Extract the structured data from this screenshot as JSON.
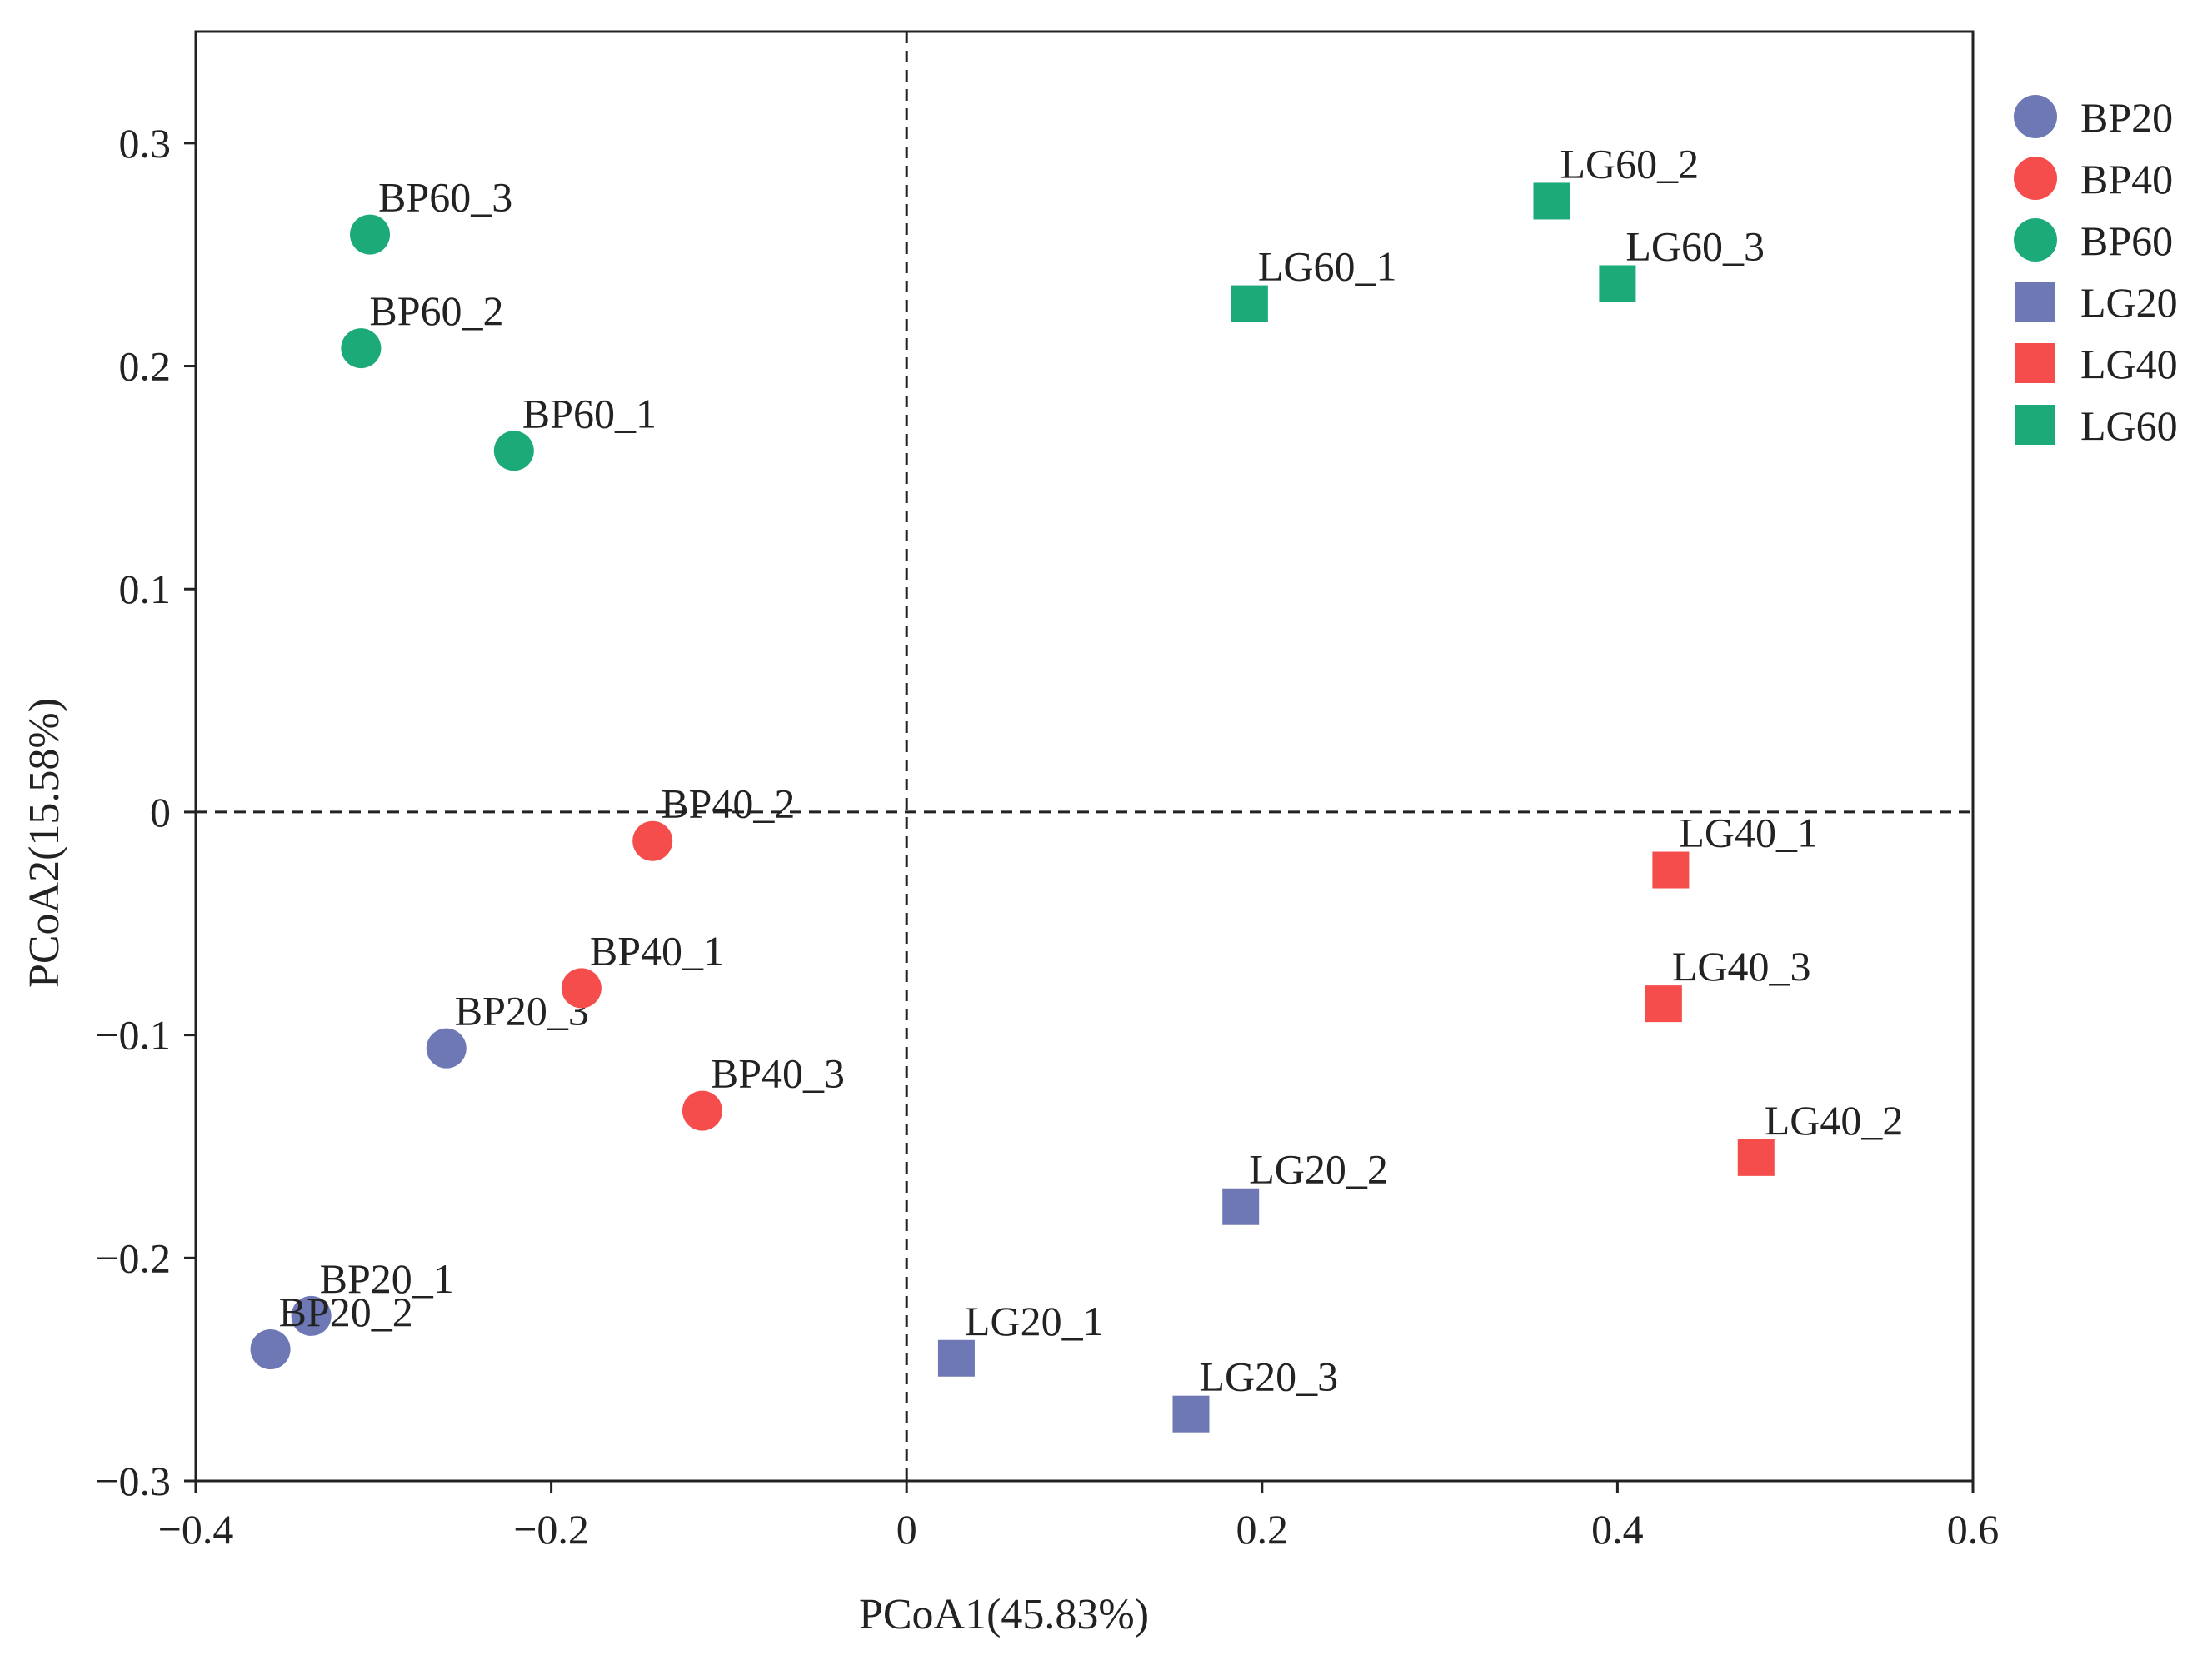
{
  "chart_data": {
    "type": "scatter",
    "title": "",
    "xlabel": "PCoA1(45.83%)",
    "ylabel": "PCoA2(15.58%)",
    "xlim": [
      -0.4,
      0.6
    ],
    "ylim": [
      -0.3,
      0.35
    ],
    "xticks": [
      -0.4,
      -0.2,
      0,
      0.2,
      0.4,
      0.6
    ],
    "xtick_labels": [
      "−0.4",
      "−0.2",
      "0",
      "0.2",
      "0.4",
      "0.6"
    ],
    "yticks": [
      -0.3,
      -0.2,
      -0.1,
      0,
      0.1,
      0.2,
      0.3
    ],
    "ytick_labels": [
      "−0.3",
      "−0.2",
      "−0.1",
      "0",
      "0.1",
      "0.2",
      "0.3"
    ],
    "reference_lines": {
      "x": 0,
      "y": 0,
      "style": "dashed"
    },
    "grid": false,
    "legend_position": "right",
    "series": [
      {
        "name": "BP20",
        "marker": "circle",
        "color": "#6E78B4",
        "points": [
          {
            "label": "BP20_1",
            "x": -0.335,
            "y": -0.226
          },
          {
            "label": "BP20_2",
            "x": -0.358,
            "y": -0.241
          },
          {
            "label": "BP20_3",
            "x": -0.259,
            "y": -0.106
          }
        ]
      },
      {
        "name": "BP40",
        "marker": "circle",
        "color": "#F54C4C",
        "points": [
          {
            "label": "BP40_1",
            "x": -0.183,
            "y": -0.079
          },
          {
            "label": "BP40_2",
            "x": -0.143,
            "y": -0.013
          },
          {
            "label": "BP40_3",
            "x": -0.115,
            "y": -0.134
          }
        ]
      },
      {
        "name": "BP60",
        "marker": "circle",
        "color": "#1BAA78",
        "points": [
          {
            "label": "BP60_1",
            "x": -0.221,
            "y": 0.162
          },
          {
            "label": "BP60_2",
            "x": -0.307,
            "y": 0.208
          },
          {
            "label": "BP60_3",
            "x": -0.302,
            "y": 0.259
          }
        ]
      },
      {
        "name": "LG20",
        "marker": "square",
        "color": "#6E78B4",
        "points": [
          {
            "label": "LG20_1",
            "x": 0.028,
            "y": -0.245
          },
          {
            "label": "LG20_2",
            "x": 0.188,
            "y": -0.177
          },
          {
            "label": "LG20_3",
            "x": 0.16,
            "y": -0.27
          }
        ]
      },
      {
        "name": "LG40",
        "marker": "square",
        "color": "#F54C4C",
        "points": [
          {
            "label": "LG40_1",
            "x": 0.43,
            "y": -0.026
          },
          {
            "label": "LG40_2",
            "x": 0.478,
            "y": -0.155
          },
          {
            "label": "LG40_3",
            "x": 0.426,
            "y": -0.086
          }
        ]
      },
      {
        "name": "LG60",
        "marker": "square",
        "color": "#1BAA78",
        "points": [
          {
            "label": "LG60_1",
            "x": 0.193,
            "y": 0.228
          },
          {
            "label": "LG60_2",
            "x": 0.363,
            "y": 0.274
          },
          {
            "label": "LG60_3",
            "x": 0.4,
            "y": 0.237
          }
        ]
      }
    ]
  }
}
